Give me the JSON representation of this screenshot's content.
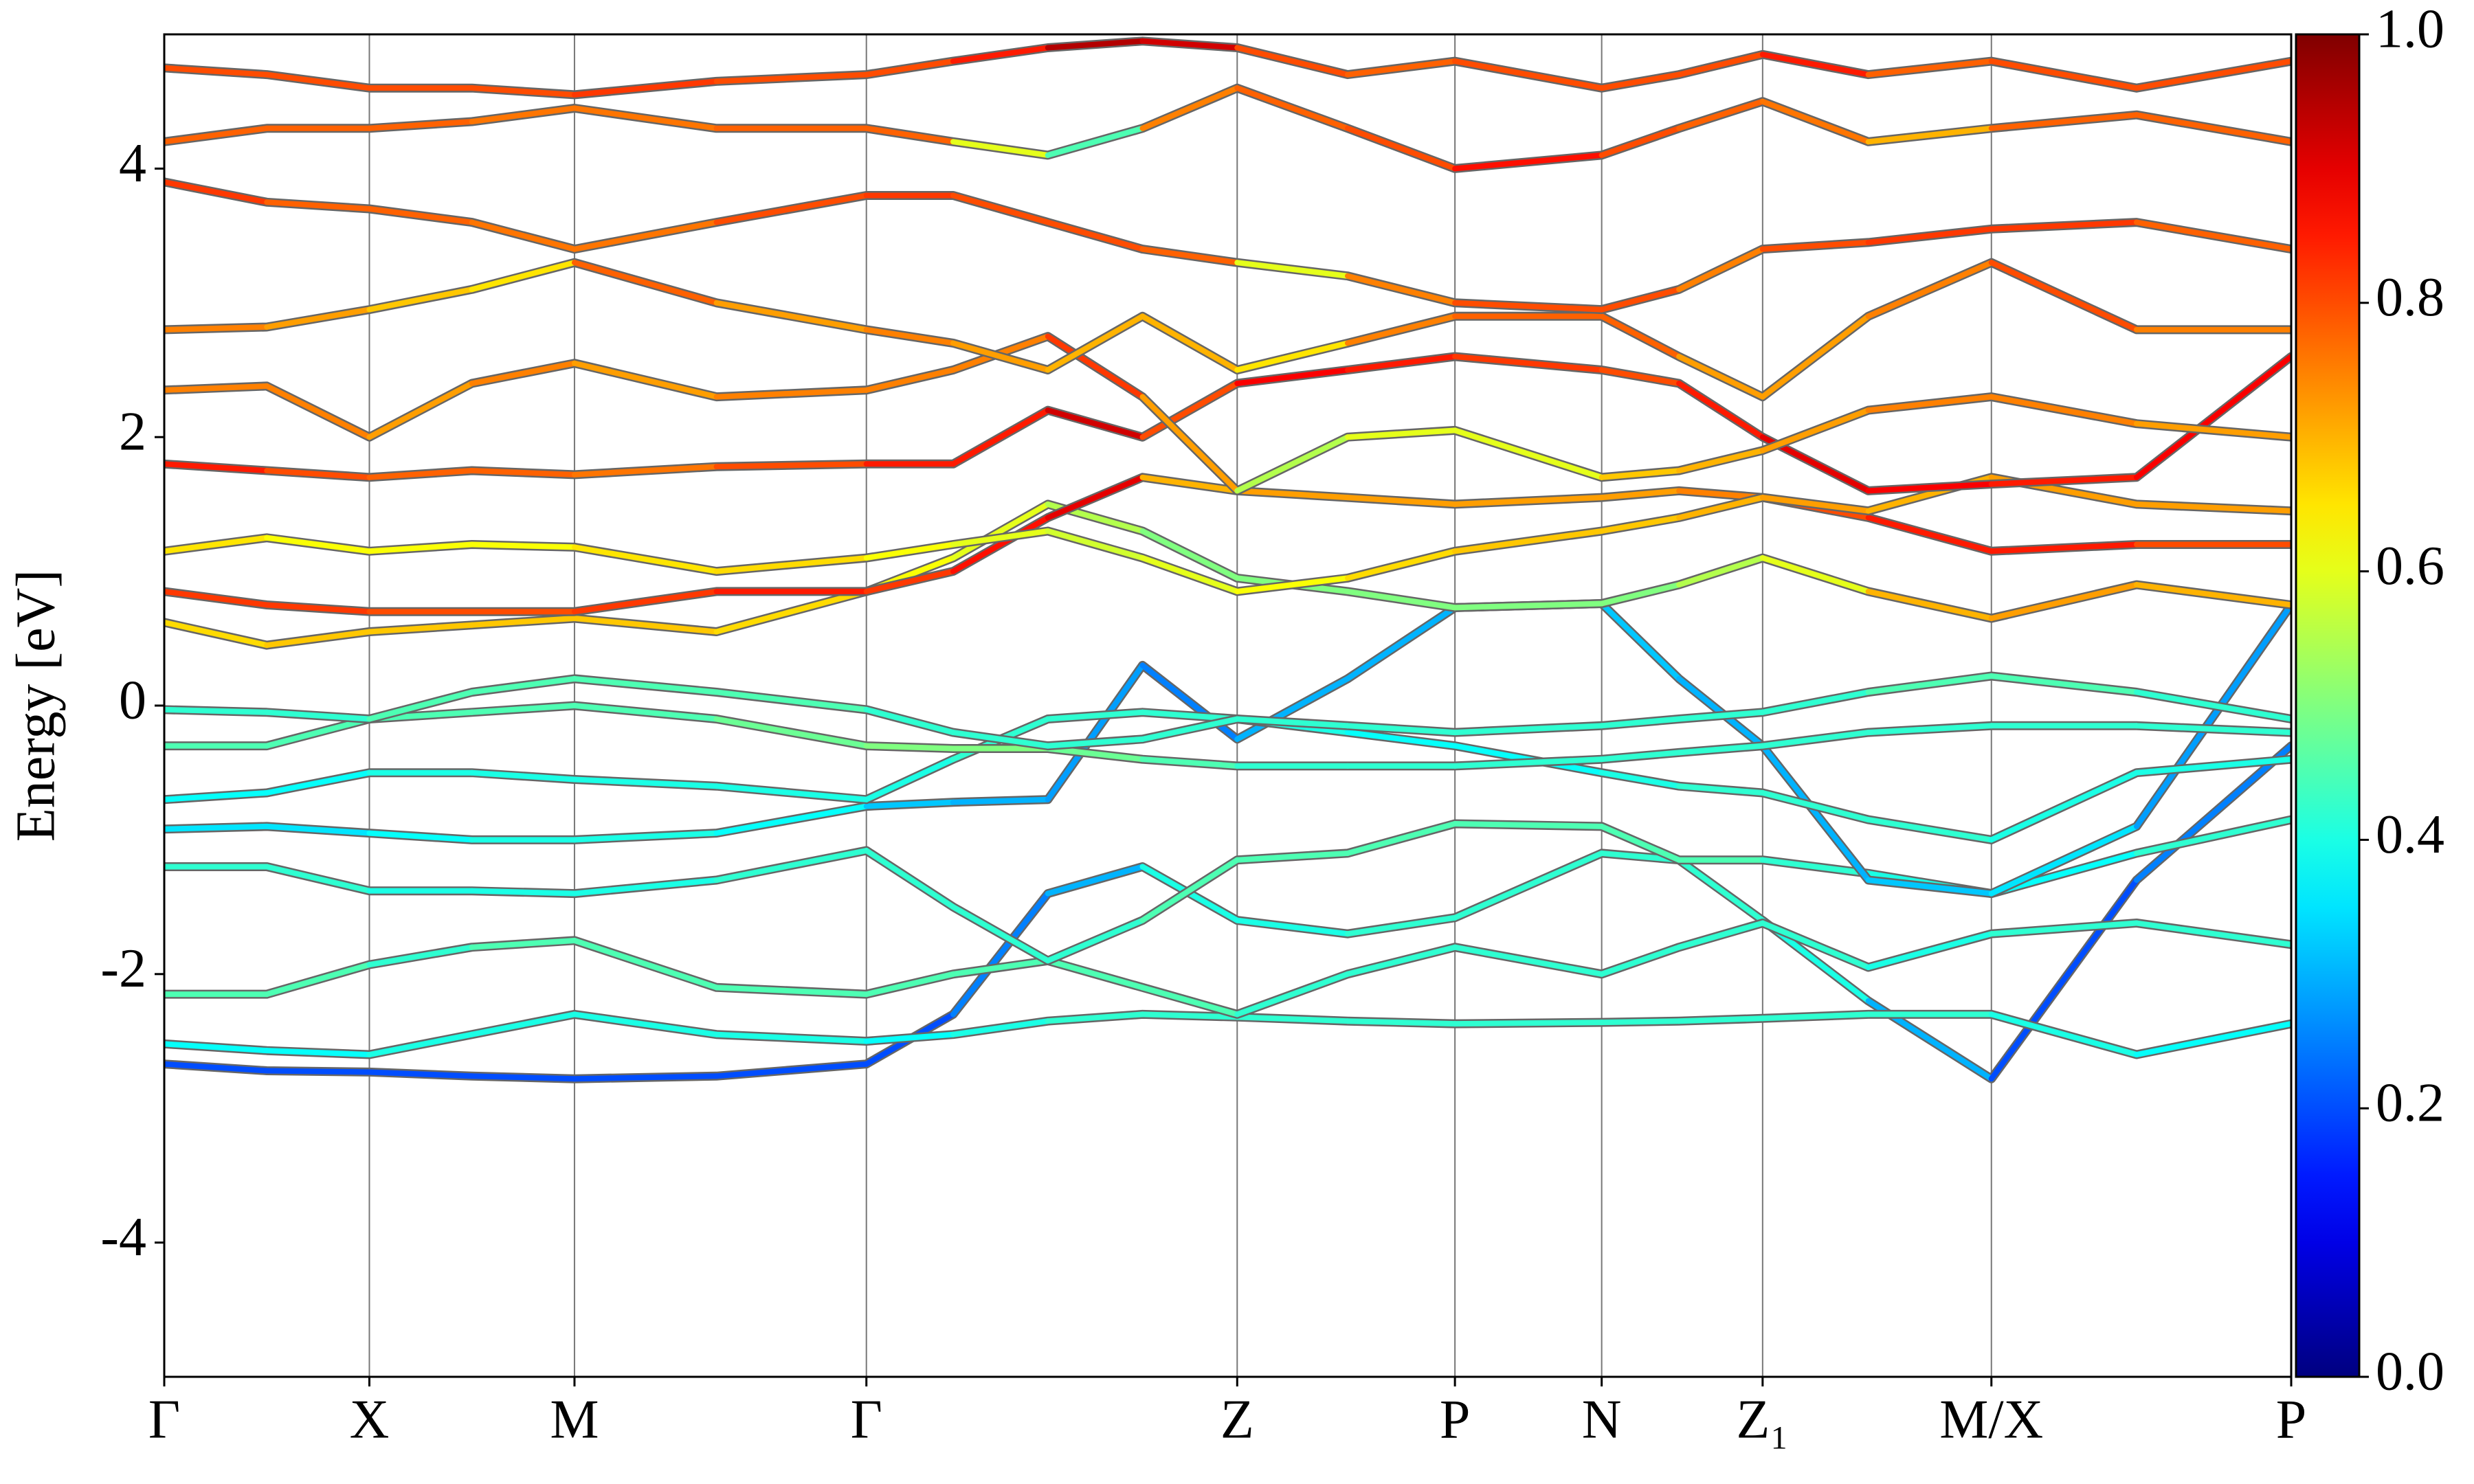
{
  "chart_data": {
    "type": "band-structure",
    "ylabel": "Energy [eV]",
    "colormap": "jet",
    "x": [
      0,
      0.65,
      1.3,
      1.95,
      2.6,
      3.5,
      4.45,
      5.0,
      5.6,
      6.2,
      6.8,
      7.5,
      8.18,
      9.11,
      9.6,
      10.13,
      10.8,
      11.58,
      12.5,
      13.48
    ],
    "xlim": [
      0,
      13.48
    ],
    "xticks": [
      {
        "value": 0,
        "label": "Γ"
      },
      {
        "value": 1.3,
        "label": "X"
      },
      {
        "value": 2.6,
        "label": "M"
      },
      {
        "value": 4.45,
        "label": "Γ"
      },
      {
        "value": 6.8,
        "label": "Z"
      },
      {
        "value": 8.18,
        "label": "P"
      },
      {
        "value": 9.11,
        "label": "N"
      },
      {
        "value": 10.13,
        "label": "Z₁"
      },
      {
        "value": 11.58,
        "label": "M/X"
      },
      {
        "value": 13.48,
        "label": "P"
      }
    ],
    "ylim": [
      -5,
      5
    ],
    "yticks": [
      -4,
      -2,
      0,
      2,
      4
    ],
    "xgrid": true,
    "clim": [
      0,
      1
    ],
    "cticks": [
      {
        "value": 0,
        "label": "0.0"
      },
      0.2,
      0.4,
      0.6,
      0.8,
      {
        "value": 1,
        "label": "1.0"
      }
    ],
    "series": [
      {
        "values": [
          -2.67,
          -2.72,
          -2.73,
          -2.76,
          -2.78,
          -2.76,
          -2.67,
          -2.3,
          -1.4,
          -1.2,
          -1.6,
          -1.7,
          -1.58,
          -1.1,
          -1.15,
          -1.6,
          -2.2,
          -2.78,
          -1.3,
          -0.3
        ],
        "weights": [
          0.2,
          0.2,
          0.2,
          0.2,
          0.2,
          0.2,
          0.2,
          0.25,
          0.3,
          0.4,
          0.4,
          0.42,
          0.42,
          0.42,
          0.42,
          0.4,
          0.3,
          0.2,
          0.25,
          0.3
        ]
      },
      {
        "values": [
          -2.52,
          -2.57,
          -2.6,
          -2.45,
          -2.3,
          -2.45,
          -2.5,
          -2.45,
          -2.35,
          -2.3,
          -2.32,
          -2.35,
          -2.37,
          -2.36,
          -2.35,
          -2.33,
          -2.3,
          -2.3,
          -2.6,
          -2.37
        ],
        "weights": [
          0.38,
          0.38,
          0.4,
          0.4,
          0.4,
          0.4,
          0.38,
          0.4,
          0.42,
          0.42,
          0.42,
          0.42,
          0.42,
          0.42,
          0.42,
          0.42,
          0.42,
          0.4,
          0.38,
          0.38
        ]
      },
      {
        "values": [
          -2.15,
          -2.15,
          -1.93,
          -1.8,
          -1.75,
          -2.1,
          -2.15,
          -2.0,
          -1.9,
          -2.1,
          -2.3,
          -2.0,
          -1.8,
          -2.0,
          -1.8,
          -1.62,
          -1.95,
          -1.7,
          -1.62,
          -1.78
        ],
        "weights": [
          0.45,
          0.45,
          0.42,
          0.45,
          0.45,
          0.45,
          0.45,
          0.45,
          0.45,
          0.45,
          0.42,
          0.42,
          0.42,
          0.42,
          0.42,
          0.42,
          0.4,
          0.42,
          0.42,
          0.42
        ]
      },
      {
        "values": [
          -1.2,
          -1.2,
          -1.38,
          -1.38,
          -1.4,
          -1.3,
          -1.08,
          -1.5,
          -1.9,
          -1.6,
          -1.15,
          -1.1,
          -0.88,
          -0.9,
          -1.15,
          -1.15,
          -1.25,
          -1.4,
          -1.1,
          -0.85
        ],
        "weights": [
          0.42,
          0.42,
          0.4,
          0.4,
          0.4,
          0.42,
          0.42,
          0.42,
          0.42,
          0.45,
          0.45,
          0.45,
          0.45,
          0.45,
          0.45,
          0.42,
          0.4,
          0.38,
          0.42,
          0.45
        ]
      },
      {
        "values": [
          -0.92,
          -0.9,
          -0.95,
          -1.0,
          -1.0,
          -0.95,
          -0.75,
          -0.72,
          -0.7,
          0.3,
          -0.25,
          0.2,
          0.73,
          0.76,
          0.2,
          -0.3,
          -1.3,
          -1.4,
          -0.9,
          0.75
        ],
        "weights": [
          0.35,
          0.35,
          0.38,
          0.4,
          0.4,
          0.38,
          0.32,
          0.3,
          0.28,
          0.25,
          0.3,
          0.3,
          0.32,
          0.32,
          0.3,
          0.3,
          0.32,
          0.35,
          0.28,
          0.45
        ]
      },
      {
        "values": [
          -0.7,
          -0.65,
          -0.5,
          -0.5,
          -0.55,
          -0.6,
          -0.7,
          -0.4,
          -0.1,
          -0.05,
          -0.1,
          -0.2,
          -0.3,
          -0.5,
          -0.6,
          -0.65,
          -0.85,
          -1.0,
          -0.5,
          -0.4
        ],
        "weights": [
          0.38,
          0.38,
          0.4,
          0.4,
          0.4,
          0.4,
          0.4,
          0.42,
          0.42,
          0.42,
          0.4,
          0.38,
          0.38,
          0.4,
          0.42,
          0.42,
          0.42,
          0.4,
          0.4,
          0.4
        ]
      },
      {
        "values": [
          -0.3,
          -0.3,
          -0.1,
          -0.05,
          0.0,
          -0.1,
          -0.3,
          -0.32,
          -0.32,
          -0.4,
          -0.45,
          -0.45,
          -0.45,
          -0.4,
          -0.35,
          -0.3,
          -0.2,
          -0.15,
          -0.15,
          -0.2
        ],
        "weights": [
          0.45,
          0.45,
          0.45,
          0.45,
          0.45,
          0.48,
          0.5,
          0.5,
          0.48,
          0.45,
          0.42,
          0.42,
          0.42,
          0.42,
          0.42,
          0.42,
          0.42,
          0.42,
          0.42,
          0.42
        ]
      },
      {
        "values": [
          -0.03,
          -0.05,
          -0.1,
          0.1,
          0.2,
          0.1,
          -0.03,
          -0.2,
          -0.3,
          -0.25,
          -0.1,
          -0.15,
          -0.2,
          -0.15,
          -0.1,
          -0.05,
          0.1,
          0.22,
          0.1,
          -0.1
        ],
        "weights": [
          0.42,
          0.42,
          0.45,
          0.45,
          0.45,
          0.45,
          0.42,
          0.42,
          0.42,
          0.42,
          0.42,
          0.42,
          0.42,
          0.42,
          0.42,
          0.42,
          0.45,
          0.45,
          0.42,
          0.42
        ]
      },
      {
        "values": [
          0.62,
          0.45,
          0.55,
          0.6,
          0.65,
          0.55,
          0.85,
          1.1,
          1.5,
          1.3,
          0.95,
          0.85,
          0.73,
          0.76,
          0.9,
          1.1,
          0.85,
          0.65,
          0.9,
          0.75
        ],
        "weights": [
          0.66,
          0.68,
          0.68,
          0.68,
          0.68,
          0.66,
          0.62,
          0.6,
          0.55,
          0.5,
          0.5,
          0.5,
          0.5,
          0.5,
          0.55,
          0.6,
          0.7,
          0.72,
          0.7,
          0.65
        ]
      },
      {
        "values": [
          0.85,
          0.75,
          0.7,
          0.7,
          0.7,
          0.85,
          0.85,
          1.0,
          1.4,
          1.7,
          1.6,
          1.55,
          1.5,
          1.55,
          1.6,
          1.55,
          1.4,
          1.15,
          1.2,
          1.2
        ],
        "weights": [
          0.82,
          0.82,
          0.8,
          0.8,
          0.82,
          0.85,
          0.82,
          0.86,
          0.9,
          0.7,
          0.72,
          0.72,
          0.72,
          0.72,
          0.75,
          0.8,
          0.85,
          0.85,
          0.8,
          0.68
        ]
      },
      {
        "values": [
          1.15,
          1.25,
          1.15,
          1.2,
          1.18,
          1.0,
          1.1,
          1.2,
          1.3,
          1.1,
          0.85,
          0.95,
          1.15,
          1.3,
          1.4,
          1.55,
          1.45,
          1.7,
          1.5,
          1.45
        ],
        "weights": [
          0.65,
          0.62,
          0.62,
          0.62,
          0.65,
          0.66,
          0.62,
          0.6,
          0.58,
          0.6,
          0.62,
          0.66,
          0.68,
          0.68,
          0.7,
          0.72,
          0.7,
          0.72,
          0.72,
          0.7
        ]
      },
      {
        "values": [
          1.8,
          1.75,
          1.7,
          1.75,
          1.72,
          1.78,
          1.8,
          1.8,
          2.2,
          2.0,
          2.4,
          2.5,
          2.6,
          2.5,
          2.4,
          2.0,
          1.6,
          1.65,
          1.7,
          2.6
        ],
        "weights": [
          0.85,
          0.8,
          0.78,
          0.78,
          0.76,
          0.8,
          0.85,
          0.85,
          0.92,
          0.8,
          0.88,
          0.85,
          0.82,
          0.8,
          0.85,
          0.9,
          0.88,
          0.85,
          0.88,
          0.9
        ]
      },
      {
        "values": [
          2.35,
          2.38,
          2.0,
          2.4,
          2.55,
          2.3,
          2.35,
          2.5,
          2.75,
          2.3,
          1.6,
          2.0,
          2.05,
          1.7,
          1.75,
          1.9,
          2.2,
          2.3,
          2.1,
          2.0
        ],
        "weights": [
          0.75,
          0.75,
          0.72,
          0.75,
          0.72,
          0.75,
          0.75,
          0.75,
          0.82,
          0.72,
          0.55,
          0.6,
          0.6,
          0.68,
          0.7,
          0.72,
          0.75,
          0.75,
          0.72,
          0.6
        ]
      },
      {
        "values": [
          2.8,
          2.82,
          2.95,
          3.1,
          3.3,
          3.0,
          2.8,
          2.7,
          2.5,
          2.9,
          2.5,
          2.7,
          2.9,
          2.9,
          2.6,
          2.3,
          2.9,
          3.3,
          2.8,
          2.8
        ],
        "weights": [
          0.75,
          0.72,
          0.68,
          0.65,
          0.78,
          0.72,
          0.75,
          0.72,
          0.7,
          0.7,
          0.65,
          0.75,
          0.78,
          0.78,
          0.72,
          0.72,
          0.75,
          0.8,
          0.75,
          0.75
        ]
      },
      {
        "values": [
          3.9,
          3.75,
          3.7,
          3.6,
          3.4,
          3.6,
          3.8,
          3.8,
          3.6,
          3.4,
          3.3,
          3.2,
          3.0,
          2.95,
          3.1,
          3.4,
          3.45,
          3.55,
          3.6,
          3.4
        ],
        "weights": [
          0.82,
          0.78,
          0.78,
          0.76,
          0.76,
          0.8,
          0.82,
          0.8,
          0.8,
          0.78,
          0.6,
          0.75,
          0.8,
          0.8,
          0.75,
          0.8,
          0.82,
          0.82,
          0.78,
          0.75
        ]
      },
      {
        "values": [
          4.2,
          4.3,
          4.3,
          4.35,
          4.45,
          4.3,
          4.3,
          4.2,
          4.1,
          4.3,
          4.6,
          4.3,
          4.0,
          4.1,
          4.3,
          4.5,
          4.2,
          4.3,
          4.4,
          4.2
        ],
        "weights": [
          0.78,
          0.78,
          0.78,
          0.76,
          0.76,
          0.78,
          0.78,
          0.6,
          0.45,
          0.75,
          0.78,
          0.8,
          0.86,
          0.8,
          0.78,
          0.76,
          0.7,
          0.78,
          0.78,
          0.78
        ]
      },
      {
        "values": [
          4.75,
          4.7,
          4.6,
          4.6,
          4.55,
          4.65,
          4.7,
          4.8,
          4.9,
          4.95,
          4.9,
          4.7,
          4.8,
          4.6,
          4.7,
          4.85,
          4.7,
          4.8,
          4.6,
          4.8
        ],
        "weights": [
          0.8,
          0.8,
          0.8,
          0.8,
          0.82,
          0.8,
          0.8,
          0.85,
          0.95,
          0.92,
          0.8,
          0.78,
          0.8,
          0.8,
          0.8,
          0.85,
          0.78,
          0.8,
          0.8,
          0.8
        ]
      }
    ]
  }
}
